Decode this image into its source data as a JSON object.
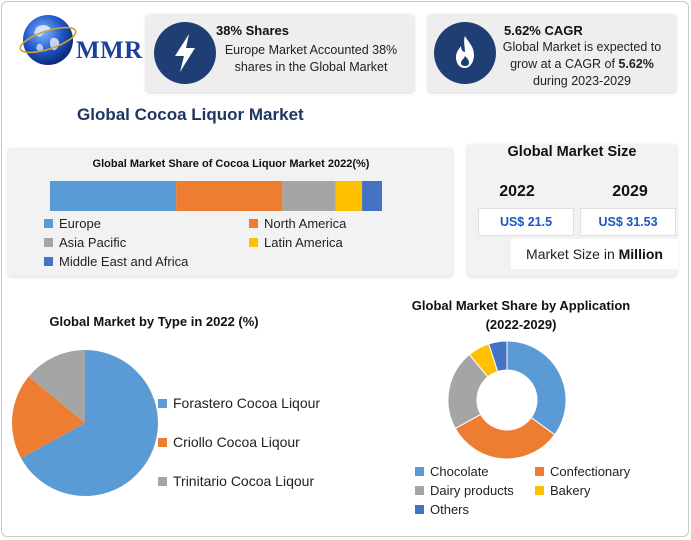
{
  "brand": {
    "logo_text": "MMR"
  },
  "cards": {
    "shares": {
      "icon": "lightning-bolt-icon",
      "title": "38% Shares",
      "line1": "Europe Market Accounted 38%",
      "line2": "shares in the Global Market"
    },
    "cagr": {
      "icon": "flame-icon",
      "title": "5.62% CAGR",
      "line1": "Global Market is expected to",
      "line2_prefix": "grow at a CAGR of ",
      "line2_bold": "5.62%",
      "line3": "during 2023-2029"
    }
  },
  "main_title": "Global Cocoa Liquor Market",
  "market_size": {
    "title": "Global Market Size",
    "year1": "2022",
    "year2": "2029",
    "value1": "US$ 21.5",
    "value2": "US$ 31.53",
    "unit_prefix": "Market Size in ",
    "unit_bold": "Million"
  },
  "colors": {
    "blue": "#5b9bd5",
    "orange": "#ed7d31",
    "gray": "#a5a5a5",
    "yellow": "#ffc000",
    "darkblue": "#4472c4",
    "icon_bg": "#1f3f74",
    "value_text": "#1b56c7"
  },
  "chart_data": [
    {
      "type": "bar",
      "orientation": "horizontal-stacked-100",
      "title": "Global Market Share of Cocoa Liquor Market 2022(%)",
      "series": [
        {
          "name": "Europe",
          "value": 38,
          "color": "#5b9bd5"
        },
        {
          "name": "North America",
          "value": 32,
          "color": "#ed7d31"
        },
        {
          "name": "Asia Pacific",
          "value": 16,
          "color": "#a5a5a5"
        },
        {
          "name": "Latin America",
          "value": 8,
          "color": "#ffc000"
        },
        {
          "name": "Middle East and Africa",
          "value": 6,
          "color": "#4472c4"
        }
      ],
      "legend": "bottom"
    },
    {
      "type": "pie",
      "title": "Global Market by Type in 2022 (%)",
      "series": [
        {
          "name": "Forastero Cocoa Liqour",
          "value": 67,
          "color": "#5b9bd5"
        },
        {
          "name": "Criollo Cocoa Liqour",
          "value": 19,
          "color": "#ed7d31"
        },
        {
          "name": "Trinitario Cocoa Liqour",
          "value": 14,
          "color": "#a5a5a5"
        }
      ],
      "legend": "right"
    },
    {
      "type": "pie",
      "variant": "donut",
      "title": "Global Market Share by Application\n(2022-2029)",
      "series": [
        {
          "name": "Chocolate",
          "value": 35,
          "color": "#5b9bd5"
        },
        {
          "name": "Confectionary",
          "value": 32,
          "color": "#ed7d31"
        },
        {
          "name": "Dairy products",
          "value": 22,
          "color": "#a5a5a5"
        },
        {
          "name": "Bakery",
          "value": 6,
          "color": "#ffc000"
        },
        {
          "name": "Others",
          "value": 5,
          "color": "#4472c4"
        }
      ],
      "legend": "bottom"
    }
  ]
}
